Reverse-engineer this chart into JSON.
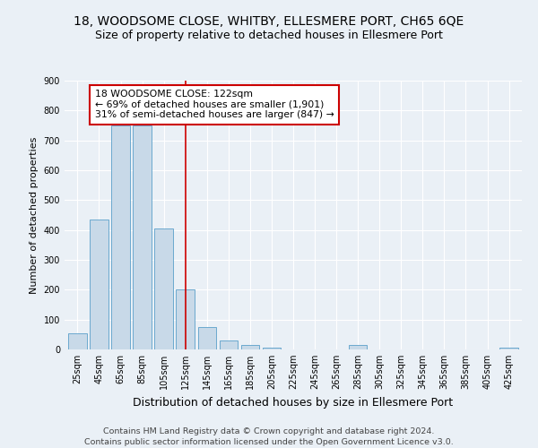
{
  "title1": "18, WOODSOME CLOSE, WHITBY, ELLESMERE PORT, CH65 6QE",
  "title2": "Size of property relative to detached houses in Ellesmere Port",
  "xlabel": "Distribution of detached houses by size in Ellesmere Port",
  "ylabel": "Number of detached properties",
  "categories": [
    "25sqm",
    "45sqm",
    "65sqm",
    "85sqm",
    "105sqm",
    "125sqm",
    "145sqm",
    "165sqm",
    "185sqm",
    "205sqm",
    "225sqm",
    "245sqm",
    "265sqm",
    "285sqm",
    "305sqm",
    "325sqm",
    "345sqm",
    "365sqm",
    "385sqm",
    "405sqm",
    "425sqm"
  ],
  "values": [
    55,
    435,
    750,
    750,
    405,
    200,
    75,
    30,
    15,
    5,
    0,
    0,
    0,
    15,
    0,
    0,
    0,
    0,
    0,
    0,
    5
  ],
  "bar_color": "#c8d9e8",
  "bar_edge_color": "#5a9fc9",
  "vline_x": 5,
  "vline_color": "#cc0000",
  "annotation_text": "18 WOODSOME CLOSE: 122sqm\n← 69% of detached houses are smaller (1,901)\n31% of semi-detached houses are larger (847) →",
  "annotation_box_color": "#ffffff",
  "annotation_box_edge": "#cc0000",
  "ylim": [
    0,
    900
  ],
  "yticks": [
    0,
    100,
    200,
    300,
    400,
    500,
    600,
    700,
    800,
    900
  ],
  "bg_color": "#eaf0f6",
  "plot_bg_color": "#eaf0f6",
  "footer_text": "Contains HM Land Registry data © Crown copyright and database right 2024.\nContains public sector information licensed under the Open Government Licence v3.0.",
  "title1_fontsize": 10,
  "title2_fontsize": 9,
  "xlabel_fontsize": 9,
  "ylabel_fontsize": 8,
  "annotation_fontsize": 7.8,
  "footer_fontsize": 6.8,
  "tick_fontsize": 7
}
